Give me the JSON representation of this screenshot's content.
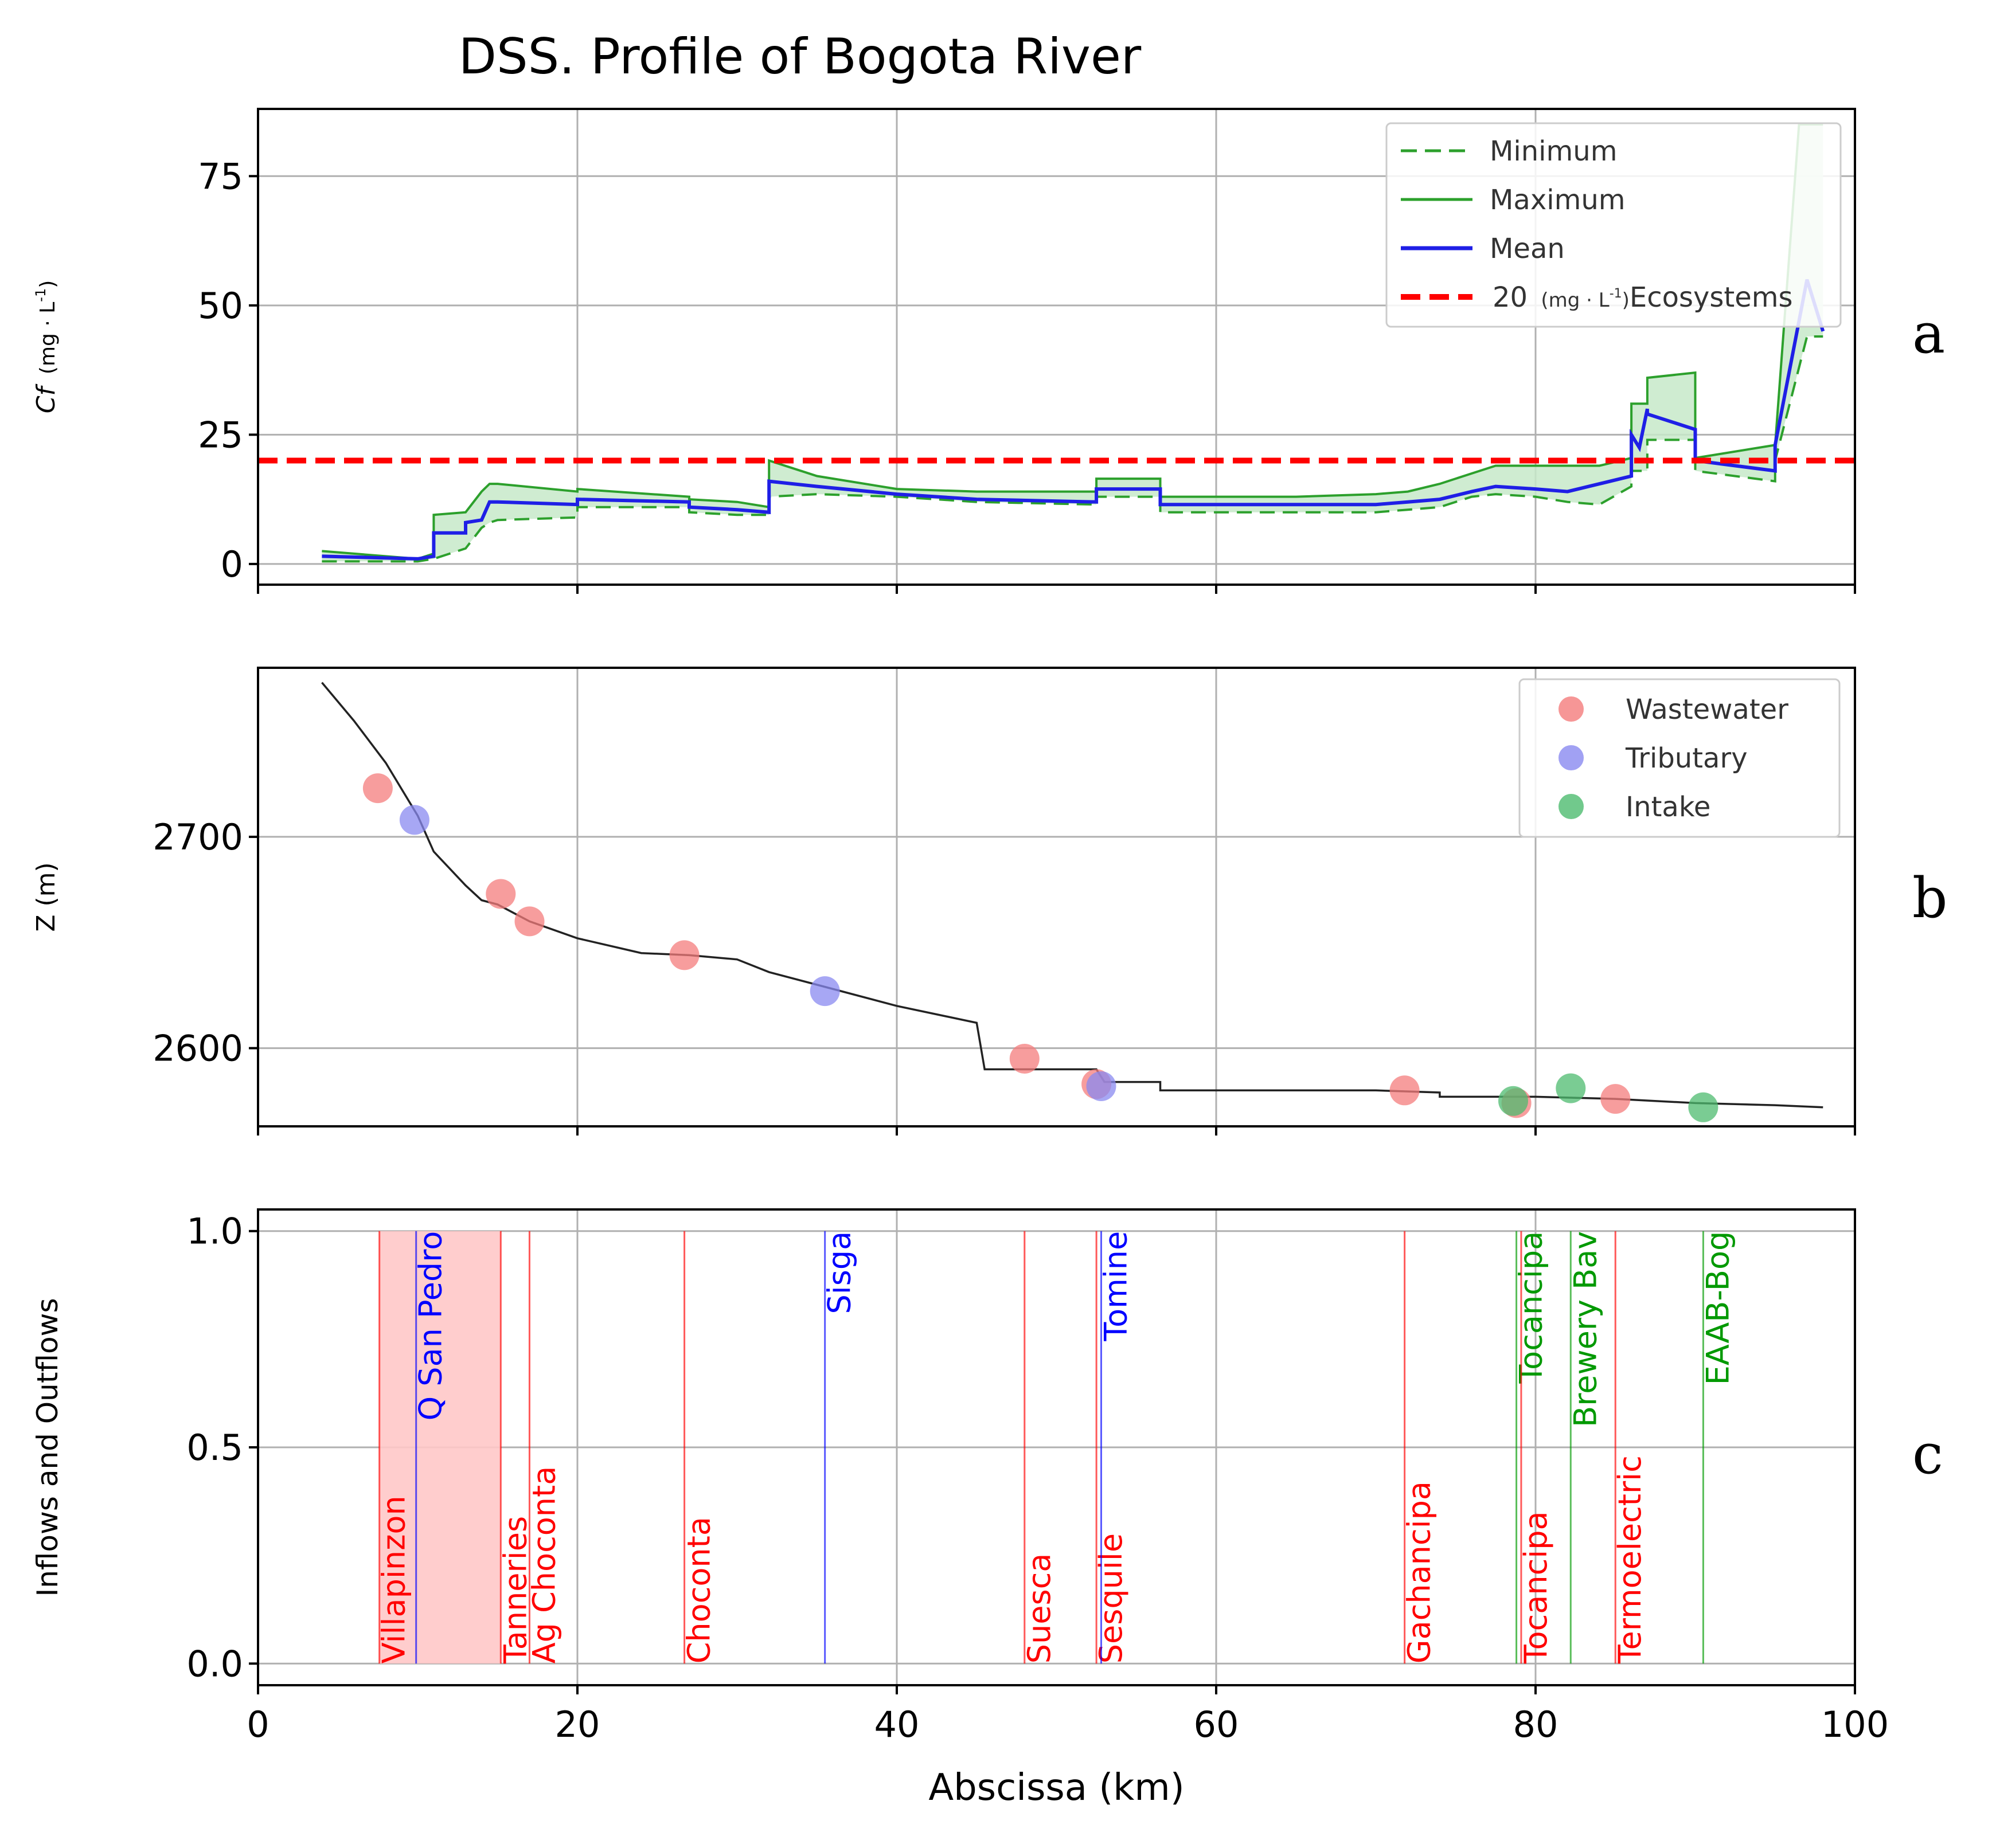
{
  "chart_data": {
    "type": "multi-panel",
    "title": "DSS. Profile of Bogota River",
    "xlabel": "Abscissa (km)",
    "xlim": [
      0,
      100
    ],
    "xticks": [
      "0",
      "20",
      "40",
      "60",
      "80",
      "100"
    ],
    "panel_a": {
      "type": "line",
      "tag": "a",
      "ylabel_italic": "Cf",
      "ylabel_units": "(mg · L",
      "ylabel_exp": "-1",
      "ylabel_close": ")",
      "ylim": [
        -4,
        88
      ],
      "yticks": [
        "0",
        "25",
        "50",
        "75"
      ],
      "legend": {
        "minimum": "Minimum",
        "maximum": "Maximum",
        "mean": "Mean",
        "threshold_value": "20",
        "threshold_units": "(mg · L",
        "threshold_exp": "-1",
        "threshold_close": ")",
        "threshold_label": "Ecosystems"
      },
      "threshold": 20,
      "colors": {
        "minimum": "#2ca02c",
        "maximum": "#2ca02c",
        "mean": "#1f1fe6",
        "threshold": "#ff0000",
        "fill": "#c7e9c9"
      },
      "series": [
        {
          "name": "Minimum",
          "style": "dashed",
          "x": [
            4,
            10,
            11,
            12,
            13,
            14,
            14.5,
            15,
            20,
            20,
            27,
            27,
            30,
            32,
            32,
            35,
            40,
            45,
            52.5,
            52.5,
            56.5,
            56.5,
            60,
            65,
            70,
            72,
            74,
            76,
            77.5,
            80,
            82,
            84,
            86,
            86,
            87,
            87,
            90,
            90,
            95,
            95,
            97,
            98
          ],
          "y": [
            0.5,
            0.5,
            1,
            2,
            3,
            7,
            8,
            8.5,
            9,
            11,
            11,
            10,
            9.5,
            9.5,
            13,
            13.5,
            13,
            12,
            11.5,
            13,
            13,
            10,
            10,
            10,
            10,
            10.5,
            11,
            13,
            13.5,
            13,
            12,
            11.5,
            15,
            18,
            18,
            24,
            24,
            18,
            16,
            20,
            44,
            44
          ]
        },
        {
          "name": "Maximum",
          "style": "solid",
          "x": [
            4,
            10,
            11,
            11,
            13,
            14,
            14.5,
            15,
            20,
            20,
            27,
            27,
            30,
            32,
            32,
            35,
            40,
            45,
            52.5,
            52.5,
            56.5,
            56.5,
            60,
            65,
            70,
            72,
            74,
            76,
            77.5,
            80,
            84,
            86,
            86,
            87,
            87,
            90,
            90,
            95,
            95,
            96.5,
            98
          ],
          "y": [
            2.5,
            1,
            2,
            9.5,
            10,
            14,
            15.5,
            15.5,
            14,
            14.5,
            13,
            12.5,
            12,
            11,
            20,
            17,
            14.5,
            14,
            14,
            16.5,
            16.5,
            13,
            13,
            13,
            13.5,
            14,
            15.5,
            17.5,
            19,
            19,
            19,
            20.5,
            31,
            31,
            36,
            37,
            20.5,
            23,
            23,
            85,
            85
          ]
        },
        {
          "name": "Mean",
          "style": "solid",
          "x": [
            4,
            10,
            11,
            11,
            13,
            13,
            14,
            14.5,
            15,
            20,
            20,
            27,
            27,
            30,
            32,
            32,
            35,
            40,
            45,
            52.5,
            52.5,
            56.5,
            56.5,
            60,
            65,
            70,
            72,
            74,
            76,
            77.5,
            80,
            82,
            84,
            86,
            86,
            86.5,
            87,
            87,
            90,
            90,
            95,
            95,
            97,
            98
          ],
          "y": [
            1.5,
            1,
            1.5,
            6,
            6,
            8,
            8.5,
            12,
            12,
            11.5,
            12.5,
            12,
            11,
            10.5,
            10,
            16,
            15,
            13.5,
            12.5,
            12,
            14.5,
            14.5,
            11.5,
            11.5,
            11.5,
            11.5,
            12,
            12.5,
            14,
            15,
            14.5,
            14,
            15.5,
            17,
            25,
            22.5,
            30,
            29,
            26,
            20,
            18,
            23,
            55,
            45
          ]
        }
      ]
    },
    "panel_b": {
      "type": "line+scatter",
      "tag": "b",
      "ylabel": "Z (m)",
      "ylim": [
        2563,
        2780
      ],
      "yticks": [
        "2600",
        "2700"
      ],
      "legend": {
        "wastewater": "Wastewater",
        "tributary": "Tributary",
        "intake": "Intake"
      },
      "colors": {
        "wastewater": "#f47c7c",
        "tributary": "#8a8af0",
        "intake": "#4dbb6f",
        "profile": "#222222"
      },
      "profile": {
        "x": [
          4,
          6,
          8,
          10,
          11,
          12,
          13,
          14,
          15,
          17,
          20,
          24,
          27,
          30,
          32,
          35,
          40,
          45,
          45.5,
          50,
          52.5,
          53,
          56.5,
          56.5,
          60,
          65,
          70,
          74,
          74,
          80,
          85,
          90,
          95,
          98
        ],
        "y": [
          2773,
          2755,
          2735,
          2710,
          2693,
          2685,
          2677,
          2670,
          2668,
          2660,
          2652,
          2645,
          2644,
          2642,
          2636,
          2630,
          2620,
          2612,
          2590,
          2590,
          2590,
          2584,
          2584,
          2580,
          2580,
          2580,
          2580,
          2579,
          2577,
          2577,
          2576,
          2574,
          2573,
          2572
        ]
      },
      "points": [
        {
          "type": "wastewater",
          "x": 7.5,
          "y": 2723
        },
        {
          "type": "tributary",
          "x": 9.8,
          "y": 2708
        },
        {
          "type": "wastewater",
          "x": 15.2,
          "y": 2673
        },
        {
          "type": "wastewater",
          "x": 17.0,
          "y": 2660
        },
        {
          "type": "wastewater",
          "x": 26.7,
          "y": 2644
        },
        {
          "type": "tributary",
          "x": 35.5,
          "y": 2627
        },
        {
          "type": "wastewater",
          "x": 48.0,
          "y": 2595
        },
        {
          "type": "wastewater",
          "x": 52.5,
          "y": 2583
        },
        {
          "type": "tributary",
          "x": 52.8,
          "y": 2582
        },
        {
          "type": "wastewater",
          "x": 71.8,
          "y": 2580
        },
        {
          "type": "wastewater",
          "x": 78.8,
          "y": 2574
        },
        {
          "type": "intake",
          "x": 78.6,
          "y": 2575
        },
        {
          "type": "intake",
          "x": 82.2,
          "y": 2581
        },
        {
          "type": "wastewater",
          "x": 85.0,
          "y": 2576
        },
        {
          "type": "intake",
          "x": 90.5,
          "y": 2572
        }
      ]
    },
    "panel_c": {
      "type": "event-lines",
      "tag": "c",
      "ylabel": "Inflows and Outflows",
      "ylim": [
        -0.05,
        1.05
      ],
      "yticks": [
        "0.0",
        "0.5",
        "1.0"
      ],
      "colors": {
        "wastewater": "#ff0000",
        "tributary": "#0000ff",
        "intake": "#009900",
        "band": "#ffc8c8"
      },
      "band": [
        7.6,
        15.2
      ],
      "events": [
        {
          "label": "Villapinzon",
          "x": 7.6,
          "type": "wastewater",
          "pos": "low"
        },
        {
          "label": "Q San Pedro",
          "x": 9.9,
          "type": "tributary",
          "pos": "high"
        },
        {
          "label": "Tanneries",
          "x": 15.2,
          "type": "wastewater",
          "pos": "low"
        },
        {
          "label": "Ag Choconta",
          "x": 17.0,
          "type": "wastewater",
          "pos": "low"
        },
        {
          "label": "Choconta",
          "x": 26.7,
          "type": "wastewater",
          "pos": "low"
        },
        {
          "label": "Sisga",
          "x": 35.5,
          "type": "tributary",
          "pos": "high"
        },
        {
          "label": "Suesca",
          "x": 48.0,
          "type": "wastewater",
          "pos": "low"
        },
        {
          "label": "Sesquile",
          "x": 52.5,
          "type": "wastewater",
          "pos": "low"
        },
        {
          "label": "Tomine",
          "x": 52.8,
          "type": "tributary",
          "pos": "high"
        },
        {
          "label": "Gachancipa",
          "x": 71.8,
          "type": "wastewater",
          "pos": "low"
        },
        {
          "label": "Tocancipa",
          "x": 78.8,
          "type": "intake",
          "pos": "high"
        },
        {
          "label": "Tocancipa",
          "x": 79.1,
          "type": "wastewater",
          "pos": "low"
        },
        {
          "label": "Brewery Bav",
          "x": 82.2,
          "type": "intake",
          "pos": "high"
        },
        {
          "label": "Termoelectric",
          "x": 85.0,
          "type": "wastewater",
          "pos": "low"
        },
        {
          "label": "EAAB-Bog",
          "x": 90.5,
          "type": "intake",
          "pos": "high"
        }
      ]
    }
  }
}
